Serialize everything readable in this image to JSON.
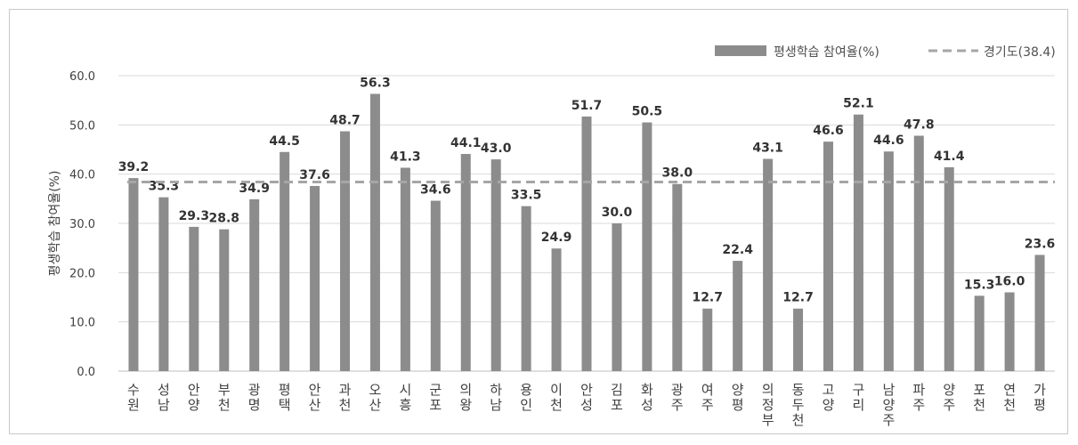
{
  "chart_data": {
    "type": "bar",
    "ylabel": "평생학습 참여율(%)",
    "ylim": [
      0,
      60
    ],
    "yticks": [
      "0.0",
      "10.0",
      "20.0",
      "30.0",
      "40.0",
      "50.0",
      "60.0"
    ],
    "grid": true,
    "legend_position": "top-right",
    "categories": [
      "수원",
      "성남",
      "안양",
      "부천",
      "광명",
      "평택",
      "안산",
      "과천",
      "오산",
      "시흥",
      "군포",
      "의왕",
      "하남",
      "용인",
      "이천",
      "안성",
      "김포",
      "화성",
      "광주",
      "여주",
      "양평",
      "의정부",
      "동두천",
      "고양",
      "구리",
      "남양주",
      "파주",
      "양주",
      "포천",
      "연천",
      "가평"
    ],
    "series": [
      {
        "name": "평생학습 참여율(%)",
        "type": "bar",
        "color": "#8c8c8c",
        "values": [
          39.2,
          35.3,
          29.3,
          28.8,
          34.9,
          44.5,
          37.6,
          48.7,
          56.3,
          41.3,
          34.6,
          44.1,
          43.0,
          33.5,
          24.9,
          51.7,
          30.0,
          50.5,
          38.0,
          12.7,
          22.4,
          43.1,
          12.7,
          46.6,
          52.1,
          44.6,
          47.8,
          41.4,
          15.3,
          16.0,
          23.6
        ],
        "labels": [
          "39.2",
          "35.3",
          "29.3",
          "28.8",
          "34.9",
          "44.5",
          "37.6",
          "48.7",
          "56.3",
          "41.3",
          "34.6",
          "44.1",
          "43.0",
          "33.5",
          "24.9",
          "51.7",
          "30.0",
          "50.5",
          "38.0",
          "12.7",
          "22.4",
          "43.1",
          "12.7",
          "46.6",
          "52.1",
          "44.6",
          "47.8",
          "41.4",
          "15.3",
          "16.0",
          "23.6"
        ]
      },
      {
        "name": "경기도(38.4)",
        "type": "reference_line",
        "style": "dashed",
        "color": "#a6a6a6",
        "value": 38.4
      }
    ]
  }
}
